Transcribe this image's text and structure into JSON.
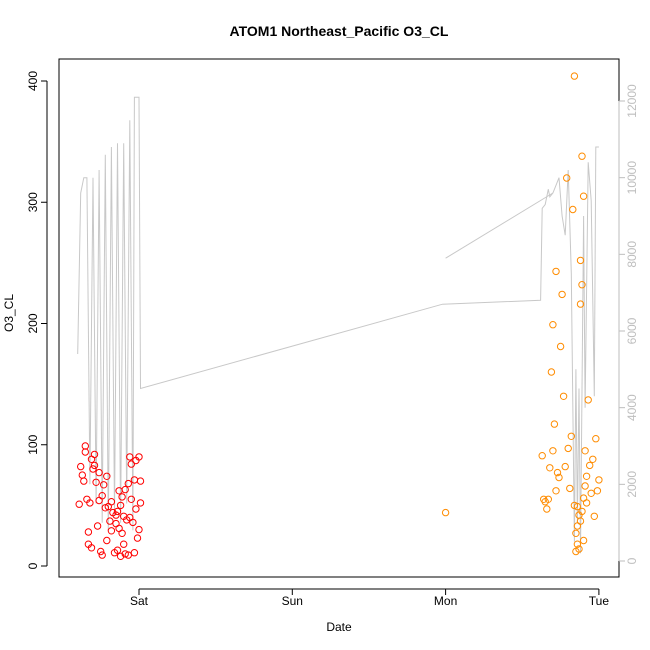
{
  "chart_data": {
    "type": "scatter",
    "title": "ATOM1 Northeast_Pacific O3_CL",
    "xlabel": "Date",
    "ylabel": "O3_CL",
    "x_range_days": [
      -0.45,
      2.1
    ],
    "x_ticks": [
      {
        "value": 0,
        "label": "Sat"
      },
      {
        "value": 1,
        "label": "Sun"
      },
      {
        "value": 2,
        "label": "Mon"
      },
      {
        "value": 3,
        "label": "Tue"
      }
    ],
    "ylim": [
      0,
      400
    ],
    "y_ticks": [
      0,
      100,
      200,
      300,
      400
    ],
    "y2lim": [
      0,
      12000
    ],
    "y2_ticks": [
      0,
      2000,
      4000,
      6000,
      8000,
      10000,
      12000
    ],
    "x_unit_note": "x values are days relative to Saturday 00:00",
    "colors": {
      "red": "#ff0000",
      "orange": "#ff8c00",
      "line": "#c8c8c8",
      "axis": "#000000",
      "right_axis": "#bebebe"
    },
    "line_series": {
      "name": "",
      "axis": "right",
      "points": [
        [
          -0.4,
          5400
        ],
        [
          -0.38,
          9600
        ],
        [
          -0.36,
          10000
        ],
        [
          -0.34,
          10000
        ],
        [
          -0.32,
          2000
        ],
        [
          -0.3,
          10000
        ],
        [
          -0.28,
          1500
        ],
        [
          -0.26,
          10200
        ],
        [
          -0.24,
          1000
        ],
        [
          -0.22,
          10600
        ],
        [
          -0.2,
          800
        ],
        [
          -0.18,
          10800
        ],
        [
          -0.16,
          1200
        ],
        [
          -0.14,
          10900
        ],
        [
          -0.12,
          1000
        ],
        [
          -0.1,
          10900
        ],
        [
          -0.08,
          1500
        ],
        [
          -0.06,
          11500
        ],
        [
          -0.04,
          800
        ],
        [
          -0.03,
          12100
        ],
        [
          0.0,
          12100
        ],
        [
          0.01,
          4500
        ],
        [
          1.98,
          6700
        ],
        [
          2.62,
          6800
        ],
        [
          2.63,
          9200
        ],
        [
          2.65,
          9300
        ],
        [
          2.67,
          9700
        ],
        [
          2.68,
          9500
        ],
        [
          2.7,
          9600
        ],
        [
          2.72,
          9800
        ],
        [
          2.74,
          10000
        ],
        [
          2.76,
          9000
        ],
        [
          2.78,
          8500
        ],
        [
          2.8,
          10200
        ],
        [
          2.82,
          7500
        ],
        [
          2.84,
          500
        ],
        [
          2.85,
          5000
        ],
        [
          2.86,
          1000
        ],
        [
          2.87,
          4500
        ],
        [
          2.88,
          200
        ],
        [
          2.9,
          9000
        ],
        [
          2.91,
          4000
        ],
        [
          2.93,
          10400
        ],
        [
          2.95,
          9400
        ],
        [
          2.97,
          4300
        ],
        [
          2.98,
          10800
        ],
        [
          3.0,
          10800
        ]
      ],
      "secondary_segment": [
        [
          2.0,
          7900
        ],
        [
          2.7,
          9600
        ]
      ]
    },
    "series": [
      {
        "name": "",
        "color": "#ff0000",
        "points": [
          [
            -0.39,
            51
          ],
          [
            -0.38,
            82
          ],
          [
            -0.37,
            75
          ],
          [
            -0.36,
            70
          ],
          [
            -0.35,
            94
          ],
          [
            -0.35,
            99
          ],
          [
            -0.34,
            55
          ],
          [
            -0.33,
            28
          ],
          [
            -0.33,
            18
          ],
          [
            -0.32,
            52
          ],
          [
            -0.31,
            15
          ],
          [
            -0.31,
            88
          ],
          [
            -0.3,
            80
          ],
          [
            -0.29,
            92
          ],
          [
            -0.29,
            83
          ],
          [
            -0.28,
            69
          ],
          [
            -0.27,
            33
          ],
          [
            -0.26,
            54
          ],
          [
            -0.26,
            77
          ],
          [
            -0.25,
            12
          ],
          [
            -0.24,
            58
          ],
          [
            -0.24,
            9
          ],
          [
            -0.23,
            67
          ],
          [
            -0.22,
            48
          ],
          [
            -0.21,
            74
          ],
          [
            -0.21,
            21
          ],
          [
            -0.2,
            49
          ],
          [
            -0.19,
            37
          ],
          [
            -0.18,
            29
          ],
          [
            -0.18,
            53
          ],
          [
            -0.17,
            44
          ],
          [
            -0.16,
            11
          ],
          [
            -0.15,
            35
          ],
          [
            -0.15,
            42
          ],
          [
            -0.14,
            13
          ],
          [
            -0.13,
            31
          ],
          [
            -0.12,
            50
          ],
          [
            -0.11,
            27
          ],
          [
            -0.1,
            41
          ],
          [
            -0.1,
            18
          ],
          [
            -0.09,
            63
          ],
          [
            -0.08,
            38
          ],
          [
            -0.07,
            9
          ],
          [
            -0.07,
            68
          ],
          [
            -0.06,
            90
          ],
          [
            -0.05,
            55
          ],
          [
            -0.05,
            84
          ],
          [
            -0.04,
            36
          ],
          [
            -0.03,
            71
          ],
          [
            -0.02,
            47
          ],
          [
            -0.02,
            87
          ],
          [
            -0.01,
            23
          ],
          [
            0.0,
            30
          ],
          [
            0.01,
            52
          ],
          [
            -0.14,
            45
          ],
          [
            -0.13,
            62
          ],
          [
            -0.12,
            8
          ],
          [
            -0.11,
            57
          ],
          [
            -0.09,
            10
          ],
          [
            -0.06,
            40
          ],
          [
            -0.03,
            11
          ],
          [
            0.0,
            90
          ],
          [
            0.01,
            70
          ]
        ]
      },
      {
        "name": "",
        "color": "#ff8c00",
        "points": [
          [
            2.0,
            44
          ],
          [
            2.63,
            91
          ],
          [
            2.64,
            55
          ],
          [
            2.65,
            53
          ],
          [
            2.66,
            47
          ],
          [
            2.67,
            55
          ],
          [
            2.68,
            81
          ],
          [
            2.69,
            160
          ],
          [
            2.7,
            95
          ],
          [
            2.7,
            199
          ],
          [
            2.71,
            117
          ],
          [
            2.72,
            243
          ],
          [
            2.72,
            62
          ],
          [
            2.73,
            77
          ],
          [
            2.74,
            73
          ],
          [
            2.75,
            181
          ],
          [
            2.76,
            224
          ],
          [
            2.77,
            140
          ],
          [
            2.78,
            82
          ],
          [
            2.79,
            320
          ],
          [
            2.8,
            97
          ],
          [
            2.81,
            64
          ],
          [
            2.82,
            107
          ],
          [
            2.83,
            294
          ],
          [
            2.84,
            404
          ],
          [
            2.84,
            50
          ],
          [
            2.85,
            27
          ],
          [
            2.86,
            33
          ],
          [
            2.86,
            18
          ],
          [
            2.87,
            42
          ],
          [
            2.88,
            216
          ],
          [
            2.88,
            252
          ],
          [
            2.89,
            232
          ],
          [
            2.89,
            338
          ],
          [
            2.9,
            305
          ],
          [
            2.9,
            21
          ],
          [
            2.91,
            95
          ],
          [
            2.92,
            74
          ],
          [
            2.93,
            137
          ],
          [
            2.94,
            83
          ],
          [
            2.95,
            60
          ],
          [
            2.96,
            88
          ],
          [
            2.97,
            41
          ],
          [
            2.98,
            105
          ],
          [
            2.99,
            62
          ],
          [
            3.0,
            71
          ],
          [
            2.87,
            14
          ],
          [
            2.86,
            49
          ],
          [
            2.85,
            12
          ],
          [
            2.88,
            37
          ],
          [
            2.89,
            45
          ],
          [
            2.9,
            56
          ],
          [
            2.91,
            66
          ],
          [
            2.92,
            52
          ]
        ]
      }
    ]
  }
}
